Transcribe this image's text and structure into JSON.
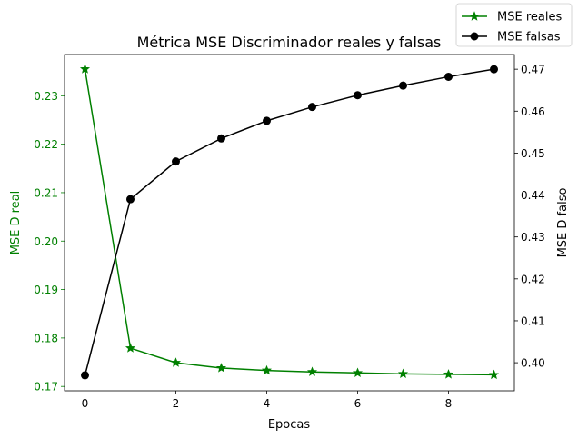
{
  "chart_data": {
    "type": "line",
    "title": "Métrica MSE Discriminador reales y falsas",
    "xlabel": "Epocas",
    "xlim": [
      -0.45,
      9.45
    ],
    "xticks": [
      0,
      2,
      4,
      6,
      8
    ],
    "x": [
      0,
      1,
      2,
      3,
      4,
      5,
      6,
      7,
      8,
      9
    ],
    "left_axis": {
      "label": "MSE D real",
      "color": "#008000",
      "ylim": [
        0.1691,
        0.2385
      ],
      "ticks": [
        0.17,
        0.18,
        0.19,
        0.2,
        0.21,
        0.22,
        0.23
      ],
      "tick_labels": [
        "0.17",
        "0.18",
        "0.19",
        "0.20",
        "0.21",
        "0.22",
        "0.23"
      ]
    },
    "right_axis": {
      "label": "MSE D falso",
      "color": "#000000",
      "ylim": [
        0.3933,
        0.4735
      ],
      "ticks": [
        0.4,
        0.41,
        0.42,
        0.43,
        0.44,
        0.45,
        0.46,
        0.47
      ],
      "tick_labels": [
        "0.40",
        "0.41",
        "0.42",
        "0.43",
        "0.44",
        "0.45",
        "0.46",
        "0.47"
      ]
    },
    "series": [
      {
        "name": "MSE reales",
        "axis": "left",
        "color": "#008000",
        "marker": "star",
        "values": [
          0.2355,
          0.1779,
          0.1749,
          0.1738,
          0.1733,
          0.173,
          0.1728,
          0.1726,
          0.1725,
          0.1724
        ]
      },
      {
        "name": "MSE falsas",
        "axis": "right",
        "color": "#000000",
        "marker": "circle",
        "values": [
          0.397,
          0.439,
          0.448,
          0.4535,
          0.4577,
          0.461,
          0.4638,
          0.4661,
          0.4682,
          0.47
        ]
      }
    ],
    "legend": {
      "placement": "top-right"
    },
    "grid": false
  }
}
